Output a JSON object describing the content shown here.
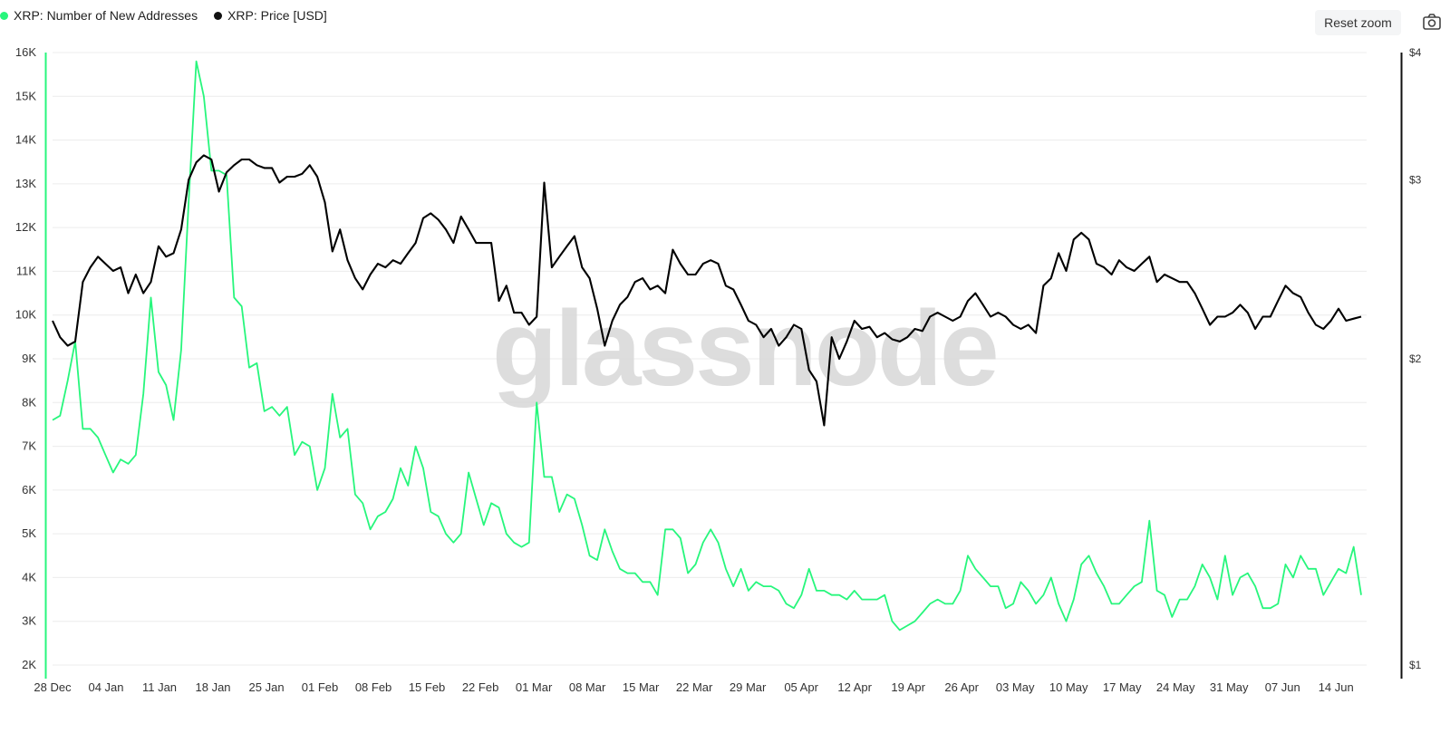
{
  "toolbar": {
    "reset_zoom_label": "Reset zoom",
    "camera_icon": "camera-icon"
  },
  "watermark": "glassnode",
  "chart_data": {
    "type": "line",
    "title": "",
    "xlabel": "",
    "ylabel": "",
    "grid": true,
    "legend_placement": "top-left",
    "x_tick_labels": [
      "28 Dec",
      "04 Jan",
      "11 Jan",
      "18 Jan",
      "25 Jan",
      "01 Feb",
      "08 Feb",
      "15 Feb",
      "22 Feb",
      "01 Mar",
      "08 Mar",
      "15 Mar",
      "22 Mar",
      "29 Mar",
      "05 Apr",
      "12 Apr",
      "19 Apr",
      "26 Apr",
      "03 May",
      "10 May",
      "17 May",
      "24 May",
      "31 May",
      "07 Jun",
      "14 Jun"
    ],
    "x_start": "2024-12-28",
    "left_axis": {
      "ylim": [
        2000,
        16000
      ],
      "tick_labels": [
        "2K",
        "3K",
        "4K",
        "5K",
        "6K",
        "7K",
        "8K",
        "9K",
        "10K",
        "11K",
        "12K",
        "13K",
        "14K",
        "15K",
        "16K"
      ]
    },
    "right_axis": {
      "scale": "log",
      "ylim": [
        1,
        4
      ],
      "tick_labels": [
        "$1",
        "$2",
        "$3",
        "$4"
      ]
    },
    "series": [
      {
        "name": "XRP: Number of New Addresses",
        "color": "#27f67c",
        "axis": "left",
        "values": [
          7600,
          7700,
          8500,
          9400,
          7400,
          7400,
          7200,
          6800,
          6400,
          6700,
          6600,
          6800,
          8200,
          10400,
          8700,
          8400,
          7600,
          9200,
          12600,
          15800,
          15000,
          13300,
          13300,
          13200,
          10400,
          10200,
          8800,
          8900,
          7800,
          7900,
          7700,
          7900,
          6800,
          7100,
          7000,
          6000,
          6500,
          8200,
          7200,
          7400,
          5900,
          5700,
          5100,
          5400,
          5500,
          5800,
          6500,
          6100,
          7000,
          6500,
          5500,
          5400,
          5000,
          4800,
          5000,
          6400,
          5800,
          5200,
          5700,
          5600,
          5000,
          4800,
          4700,
          4800,
          8000,
          6300,
          6300,
          5500,
          5900,
          5800,
          5200,
          4500,
          4400,
          5100,
          4600,
          4200,
          4100,
          4100,
          3900,
          3900,
          3600,
          5100,
          5100,
          4900,
          4100,
          4300,
          4800,
          5100,
          4800,
          4200,
          3800,
          4200,
          3700,
          3900,
          3800,
          3800,
          3700,
          3400,
          3300,
          3600,
          4200,
          3700,
          3700,
          3600,
          3600,
          3500,
          3700,
          3500,
          3500,
          3500,
          3600,
          3000,
          2800,
          2900,
          3000,
          3200,
          3400,
          3500,
          3400,
          3400,
          3700,
          4500,
          4200,
          4000,
          3800,
          3800,
          3300,
          3400,
          3900,
          3700,
          3400,
          3600,
          4000,
          3400,
          3000,
          3500,
          4300,
          4500,
          4100,
          3800,
          3400,
          3400,
          3600,
          3800,
          3900,
          5300,
          3700,
          3600,
          3100,
          3500,
          3500,
          3800,
          4300,
          4000,
          3500,
          4500,
          3600,
          4000,
          4100,
          3800,
          3300,
          3300,
          3400,
          4300,
          4000,
          4500,
          4200,
          4200,
          3600,
          3900,
          4200,
          4100,
          4700,
          3600
        ]
      },
      {
        "name": "XRP: Price [USD]",
        "color": "#000000",
        "axis": "right",
        "values": [
          2.18,
          2.1,
          2.06,
          2.08,
          2.38,
          2.46,
          2.52,
          2.48,
          2.44,
          2.46,
          2.32,
          2.42,
          2.32,
          2.38,
          2.58,
          2.52,
          2.54,
          2.68,
          3.0,
          3.12,
          3.17,
          3.14,
          2.92,
          3.05,
          3.1,
          3.14,
          3.14,
          3.1,
          3.08,
          3.08,
          2.98,
          3.02,
          3.02,
          3.04,
          3.1,
          3.02,
          2.85,
          2.55,
          2.68,
          2.5,
          2.4,
          2.34,
          2.42,
          2.48,
          2.46,
          2.5,
          2.48,
          2.54,
          2.6,
          2.75,
          2.78,
          2.74,
          2.68,
          2.6,
          2.76,
          2.68,
          2.6,
          2.6,
          2.6,
          2.28,
          2.36,
          2.22,
          2.22,
          2.16,
          2.2,
          2.98,
          2.46,
          2.52,
          2.58,
          2.64,
          2.46,
          2.4,
          2.24,
          2.06,
          2.18,
          2.26,
          2.3,
          2.38,
          2.4,
          2.34,
          2.36,
          2.32,
          2.56,
          2.48,
          2.42,
          2.42,
          2.48,
          2.5,
          2.48,
          2.36,
          2.34,
          2.26,
          2.18,
          2.16,
          2.1,
          2.14,
          2.06,
          2.1,
          2.16,
          2.14,
          1.95,
          1.9,
          1.72,
          2.1,
          2.0,
          2.08,
          2.18,
          2.14,
          2.15,
          2.1,
          2.12,
          2.09,
          2.08,
          2.1,
          2.14,
          2.13,
          2.2,
          2.22,
          2.2,
          2.18,
          2.2,
          2.28,
          2.32,
          2.26,
          2.2,
          2.22,
          2.2,
          2.16,
          2.14,
          2.16,
          2.12,
          2.36,
          2.4,
          2.54,
          2.44,
          2.62,
          2.66,
          2.62,
          2.48,
          2.46,
          2.42,
          2.5,
          2.46,
          2.44,
          2.48,
          2.52,
          2.38,
          2.42,
          2.4,
          2.38,
          2.38,
          2.32,
          2.24,
          2.16,
          2.2,
          2.2,
          2.22,
          2.26,
          2.22,
          2.14,
          2.2,
          2.2,
          2.28,
          2.36,
          2.32,
          2.3,
          2.22,
          2.16,
          2.14,
          2.18,
          2.24,
          2.18,
          2.19,
          2.2
        ]
      }
    ]
  }
}
